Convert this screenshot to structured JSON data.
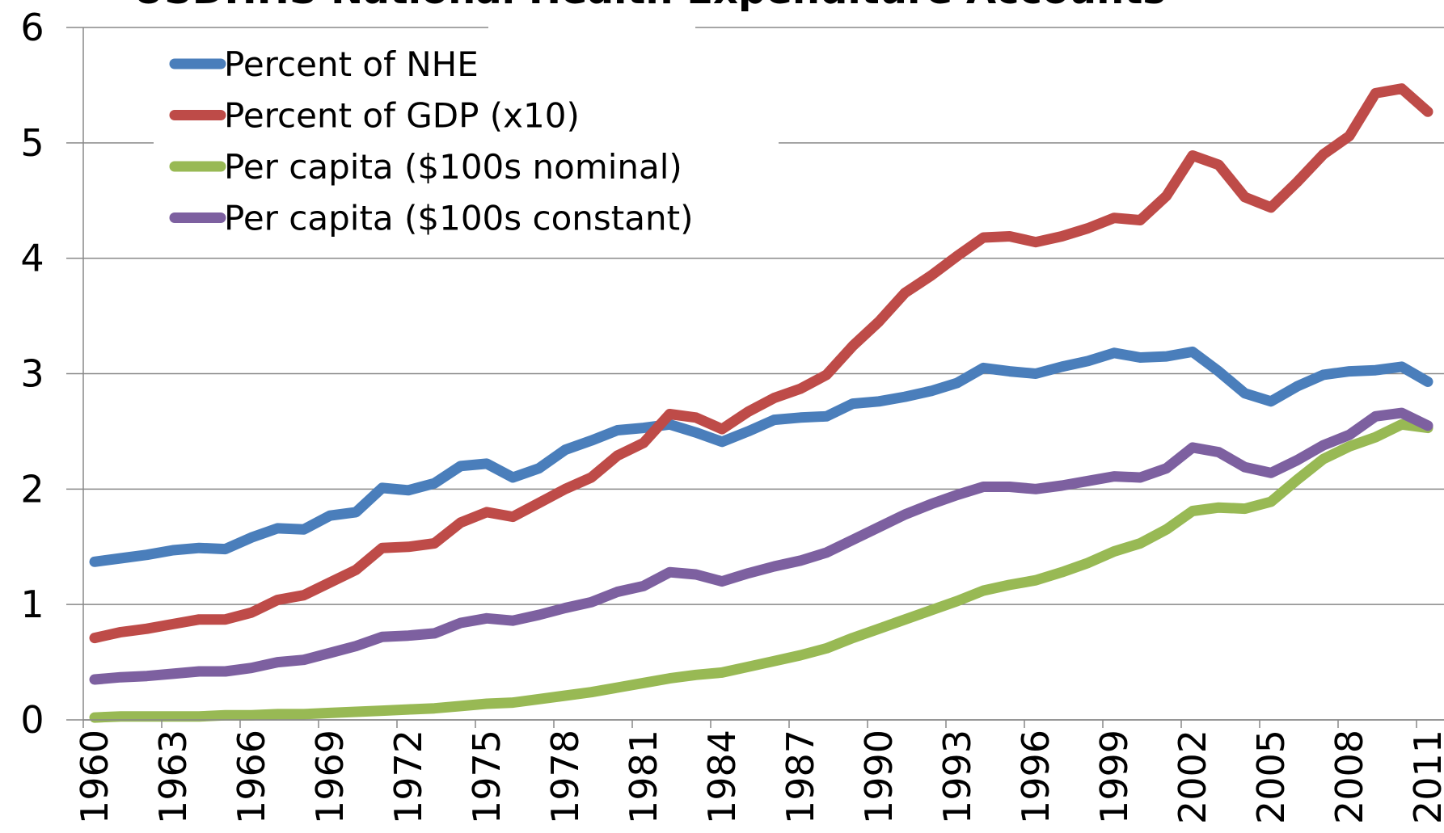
{
  "chart_data": {
    "type": "line",
    "title": "USDHHS National Health Expenditure Accounts",
    "x": [
      1960,
      1961,
      1962,
      1963,
      1964,
      1965,
      1966,
      1967,
      1968,
      1969,
      1970,
      1971,
      1972,
      1973,
      1974,
      1975,
      1976,
      1977,
      1978,
      1979,
      1980,
      1981,
      1982,
      1983,
      1984,
      1985,
      1986,
      1987,
      1988,
      1989,
      1990,
      1991,
      1992,
      1993,
      1994,
      1995,
      1996,
      1997,
      1998,
      1999,
      2000,
      2001,
      2002,
      2003,
      2004,
      2005,
      2006,
      2007,
      2008,
      2009,
      2010,
      2011
    ],
    "xlim": [
      1960,
      2011
    ],
    "xticks": [
      1960,
      1963,
      1966,
      1969,
      1972,
      1975,
      1978,
      1981,
      1984,
      1987,
      1990,
      1993,
      1996,
      1999,
      2002,
      2005,
      2008,
      2011
    ],
    "ylim": [
      0,
      6
    ],
    "yticks": [
      0,
      1,
      2,
      3,
      4,
      5,
      6
    ],
    "grid": true,
    "legend": "upper left",
    "series": [
      {
        "name": "Percent of NHE",
        "color": "#4a7ebb",
        "values": [
          1.37,
          1.4,
          1.43,
          1.47,
          1.49,
          1.48,
          1.58,
          1.66,
          1.65,
          1.77,
          1.8,
          2.01,
          1.99,
          2.05,
          2.2,
          2.22,
          2.1,
          2.18,
          2.34,
          2.42,
          2.51,
          2.53,
          2.56,
          2.49,
          2.41,
          2.5,
          2.6,
          2.62,
          2.63,
          2.74,
          2.76,
          2.8,
          2.85,
          2.92,
          3.05,
          3.02,
          3.0,
          3.06,
          3.11,
          3.18,
          3.14,
          3.15,
          3.19,
          3.02,
          2.83,
          2.76,
          2.89,
          2.99,
          3.02,
          3.03,
          3.06,
          2.93
        ]
      },
      {
        "name": "Percent of GDP (x10)",
        "color": "#be4b48",
        "values": [
          0.71,
          0.76,
          0.79,
          0.83,
          0.87,
          0.87,
          0.93,
          1.04,
          1.08,
          1.19,
          1.3,
          1.49,
          1.5,
          1.53,
          1.71,
          1.8,
          1.76,
          1.88,
          2.0,
          2.1,
          2.29,
          2.4,
          2.65,
          2.62,
          2.52,
          2.67,
          2.79,
          2.87,
          2.99,
          3.24,
          3.45,
          3.7,
          3.85,
          4.02,
          4.18,
          4.19,
          4.14,
          4.19,
          4.26,
          4.35,
          4.33,
          4.54,
          4.89,
          4.81,
          4.53,
          4.44,
          4.66,
          4.9,
          5.06,
          5.43,
          5.47,
          5.27
        ]
      },
      {
        "name": "Per capita ($100s nominal)",
        "color": "#98b954",
        "values": [
          0.02,
          0.03,
          0.03,
          0.03,
          0.03,
          0.04,
          0.04,
          0.05,
          0.05,
          0.06,
          0.07,
          0.08,
          0.09,
          0.1,
          0.12,
          0.14,
          0.15,
          0.18,
          0.21,
          0.24,
          0.28,
          0.32,
          0.36,
          0.39,
          0.41,
          0.46,
          0.51,
          0.56,
          0.62,
          0.71,
          0.79,
          0.87,
          0.95,
          1.03,
          1.12,
          1.17,
          1.21,
          1.28,
          1.36,
          1.46,
          1.53,
          1.65,
          1.81,
          1.84,
          1.83,
          1.89,
          2.08,
          2.26,
          2.37,
          2.45,
          2.56,
          2.53
        ]
      },
      {
        "name": "Per capita ($100s constant)",
        "color": "#7d60a0",
        "values": [
          0.35,
          0.37,
          0.38,
          0.4,
          0.42,
          0.42,
          0.45,
          0.5,
          0.52,
          0.58,
          0.64,
          0.72,
          0.73,
          0.75,
          0.84,
          0.88,
          0.86,
          0.91,
          0.97,
          1.02,
          1.11,
          1.16,
          1.28,
          1.26,
          1.2,
          1.27,
          1.33,
          1.38,
          1.45,
          1.56,
          1.67,
          1.78,
          1.87,
          1.95,
          2.02,
          2.02,
          2.0,
          2.03,
          2.07,
          2.11,
          2.1,
          2.18,
          2.36,
          2.32,
          2.19,
          2.14,
          2.25,
          2.38,
          2.47,
          2.63,
          2.66,
          2.55
        ]
      }
    ]
  }
}
